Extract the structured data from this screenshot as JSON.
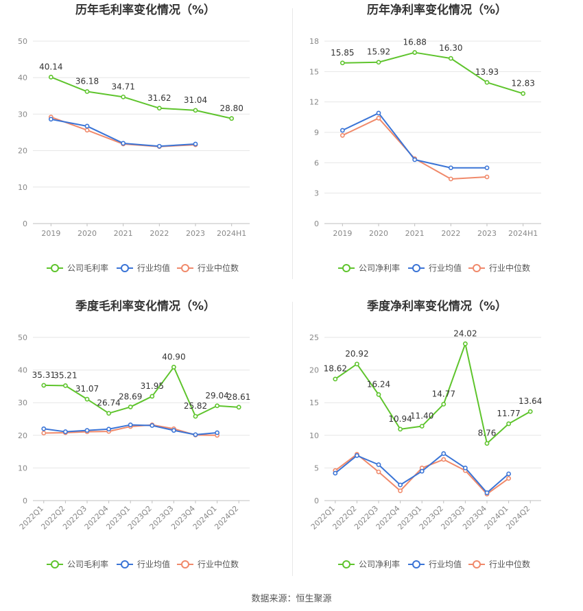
{
  "source": "数据来源：恒生聚源",
  "colors": {
    "company": "#5ec42c",
    "industry_avg": "#3a74d6",
    "industry_median": "#f0896a"
  },
  "chart_data": [
    {
      "type": "line",
      "title": "历年毛利率变化情况（%）",
      "categories": [
        "2019",
        "2020",
        "2021",
        "2022",
        "2023",
        "2024H1"
      ],
      "ylim": [
        0,
        50
      ],
      "yticks": [
        0,
        10,
        20,
        30,
        40,
        50
      ],
      "grid": true,
      "rotate_xticks": false,
      "legend_position": "bottom",
      "series": [
        {
          "name": "公司毛利率",
          "color": "#5ec42c",
          "show_labels": true,
          "labels": [
            "40.14",
            "36.18",
            "34.71",
            "31.62",
            "31.04",
            "28.80"
          ],
          "values": [
            40.14,
            36.18,
            34.71,
            31.62,
            31.04,
            28.8
          ]
        },
        {
          "name": "行业均值",
          "color": "#3a74d6",
          "show_labels": false,
          "values": [
            28.6,
            26.7,
            22.0,
            21.2,
            21.8,
            null
          ]
        },
        {
          "name": "行业中位数",
          "color": "#f0896a",
          "show_labels": false,
          "values": [
            29.2,
            25.6,
            21.8,
            21.1,
            21.6,
            null
          ]
        }
      ]
    },
    {
      "type": "line",
      "title": "历年净利率变化情况（%）",
      "categories": [
        "2019",
        "2020",
        "2021",
        "2022",
        "2023",
        "2024H1"
      ],
      "ylim": [
        0,
        18
      ],
      "yticks": [
        0,
        3,
        6,
        9,
        12,
        15,
        18
      ],
      "grid": true,
      "rotate_xticks": false,
      "legend_position": "bottom",
      "series": [
        {
          "name": "公司净利率",
          "color": "#5ec42c",
          "show_labels": true,
          "labels": [
            "15.85",
            "15.92",
            "16.88",
            "16.30",
            "13.93",
            "12.83"
          ],
          "values": [
            15.85,
            15.92,
            16.88,
            16.3,
            13.93,
            12.83
          ]
        },
        {
          "name": "行业均值",
          "color": "#3a74d6",
          "show_labels": false,
          "values": [
            9.2,
            10.9,
            6.3,
            5.5,
            5.5,
            null
          ]
        },
        {
          "name": "行业中位数",
          "color": "#f0896a",
          "show_labels": false,
          "values": [
            8.7,
            10.4,
            6.4,
            4.4,
            4.6,
            null
          ]
        }
      ]
    },
    {
      "type": "line",
      "title": "季度毛利率变化情况（%）",
      "categories": [
        "2022Q1",
        "2022Q2",
        "2022Q3",
        "2022Q4",
        "2023Q1",
        "2023Q2",
        "2023Q3",
        "2023Q4",
        "2024Q1",
        "2024Q2"
      ],
      "ylim": [
        0,
        50
      ],
      "yticks": [
        0,
        10,
        20,
        30,
        40,
        50
      ],
      "grid": true,
      "rotate_xticks": true,
      "legend_position": "bottom",
      "series": [
        {
          "name": "公司毛利率",
          "color": "#5ec42c",
          "show_labels": true,
          "labels": [
            "35.31",
            "35.21",
            "31.07",
            "26.74",
            "28.69",
            "31.95",
            "40.90",
            "25.82",
            "29.04",
            "28.61"
          ],
          "values": [
            35.31,
            35.21,
            31.07,
            26.74,
            28.69,
            31.95,
            40.9,
            25.82,
            29.04,
            28.61
          ]
        },
        {
          "name": "行业均值",
          "color": "#3a74d6",
          "show_labels": false,
          "values": [
            22.0,
            21.1,
            21.5,
            21.9,
            23.2,
            23.0,
            21.5,
            20.2,
            20.8,
            null
          ]
        },
        {
          "name": "行业中位数",
          "color": "#f0896a",
          "show_labels": false,
          "values": [
            20.7,
            20.8,
            21.1,
            21.2,
            22.7,
            23.2,
            22.0,
            20.1,
            20.0,
            null
          ]
        }
      ]
    },
    {
      "type": "line",
      "title": "季度净利率变化情况（%）",
      "categories": [
        "2022Q1",
        "2022Q2",
        "2022Q3",
        "2022Q4",
        "2023Q1",
        "2023Q2",
        "2023Q3",
        "2023Q4",
        "2024Q1",
        "2024Q2"
      ],
      "ylim": [
        0,
        25
      ],
      "yticks": [
        0,
        5,
        10,
        15,
        20,
        25
      ],
      "grid": true,
      "rotate_xticks": true,
      "legend_position": "bottom",
      "series": [
        {
          "name": "公司净利率",
          "color": "#5ec42c",
          "show_labels": true,
          "labels": [
            "18.62",
            "20.92",
            "16.24",
            "10.94",
            "11.40",
            "14.77",
            "24.02",
            "8.76",
            "11.77",
            "13.64"
          ],
          "values": [
            18.62,
            20.92,
            16.24,
            10.94,
            11.4,
            14.77,
            24.02,
            8.76,
            11.77,
            13.64
          ]
        },
        {
          "name": "行业均值",
          "color": "#3a74d6",
          "show_labels": false,
          "values": [
            4.2,
            6.9,
            5.5,
            2.4,
            4.5,
            7.2,
            5.0,
            1.2,
            4.1,
            null
          ]
        },
        {
          "name": "行业中位数",
          "color": "#f0896a",
          "show_labels": false,
          "values": [
            4.6,
            7.1,
            4.4,
            1.5,
            5.0,
            6.3,
            4.6,
            1.0,
            3.4,
            null
          ]
        }
      ]
    }
  ]
}
